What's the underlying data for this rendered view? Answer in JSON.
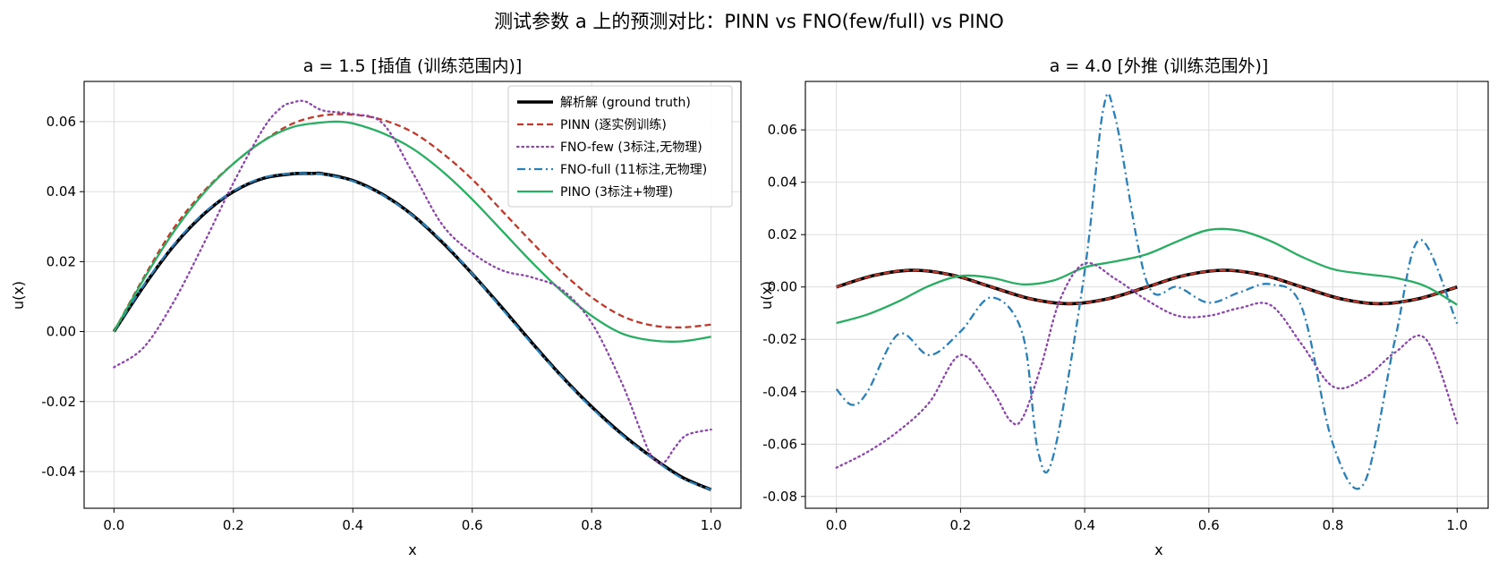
{
  "figure": {
    "title": "测试参数 a 上的预测对比：PINN vs FNO(few/full) vs PINO"
  },
  "legend": [
    {
      "key": "gt",
      "label": "解析解 (ground truth)"
    },
    {
      "key": "pinn",
      "label": "PINN (逐实例训练)"
    },
    {
      "key": "few",
      "label": "FNO-few (3标注,无物理)"
    },
    {
      "key": "full",
      "label": "FNO-full (11标注,无物理)"
    },
    {
      "key": "pino",
      "label": "PINO (3标注+物理)"
    }
  ],
  "colors": {
    "gt": "#000000",
    "pinn": "#c0392b",
    "few": "#8e44ad",
    "full": "#2980b9",
    "pino": "#27ae60"
  },
  "chart_data": [
    {
      "type": "line",
      "title": "a = 1.5  [插值 (训练范围内)]",
      "xlabel": "x",
      "ylabel": "u(x)",
      "xlim": [
        -0.05,
        1.05
      ],
      "ylim": [
        -0.0505,
        0.0715
      ],
      "xticks": [
        0.0,
        0.2,
        0.4,
        0.6,
        0.8,
        1.0
      ],
      "xtick_labels": [
        "0.0",
        "0.2",
        "0.4",
        "0.6",
        "0.8",
        "1.0"
      ],
      "yticks": [
        -0.04,
        -0.02,
        0.0,
        0.02,
        0.04,
        0.06
      ],
      "ytick_labels": [
        "-0.04",
        "-0.02",
        "0.00",
        "0.02",
        "0.04",
        "0.06"
      ],
      "grid": true,
      "legend_position": "top-right",
      "series": [
        {
          "key": "gt",
          "x": [
            0,
            0.05,
            0.1,
            0.15,
            0.2,
            0.25,
            0.3,
            0.333,
            0.35,
            0.4,
            0.45,
            0.5,
            0.55,
            0.6,
            0.65,
            0.7,
            0.75,
            0.8,
            0.85,
            0.9,
            0.95,
            1.0
          ],
          "y": [
            0,
            0.013,
            0.0245,
            0.0335,
            0.04,
            0.0438,
            0.0451,
            0.0452,
            0.0451,
            0.0432,
            0.0392,
            0.0333,
            0.0255,
            0.0165,
            0.0068,
            -0.0032,
            -0.0128,
            -0.0215,
            -0.0292,
            -0.0358,
            -0.0415,
            -0.0452
          ]
        },
        {
          "key": "full",
          "x": [
            0,
            0.05,
            0.1,
            0.15,
            0.2,
            0.25,
            0.3,
            0.333,
            0.35,
            0.4,
            0.45,
            0.5,
            0.55,
            0.6,
            0.65,
            0.7,
            0.75,
            0.8,
            0.85,
            0.9,
            0.95,
            1.0
          ],
          "y": [
            0,
            0.0133,
            0.0248,
            0.0338,
            0.0402,
            0.044,
            0.0452,
            0.0452,
            0.045,
            0.043,
            0.039,
            0.0332,
            0.0258,
            0.0165,
            0.0065,
            -0.0035,
            -0.013,
            -0.0218,
            -0.0295,
            -0.036,
            -0.0418,
            -0.0452
          ]
        },
        {
          "key": "pinn",
          "x": [
            0,
            0.05,
            0.1,
            0.15,
            0.2,
            0.25,
            0.3,
            0.35,
            0.4,
            0.45,
            0.5,
            0.55,
            0.6,
            0.65,
            0.7,
            0.75,
            0.8,
            0.85,
            0.9,
            0.95,
            1.0
          ],
          "y": [
            0,
            0.0155,
            0.0295,
            0.04,
            0.048,
            0.0545,
            0.0595,
            0.0618,
            0.062,
            0.0605,
            0.057,
            0.051,
            0.0435,
            0.0345,
            0.0255,
            0.017,
            0.0098,
            0.0045,
            0.0018,
            0.0012,
            0.002
          ]
        },
        {
          "key": "pino",
          "x": [
            0,
            0.05,
            0.1,
            0.15,
            0.2,
            0.25,
            0.3,
            0.35,
            0.375,
            0.4,
            0.45,
            0.5,
            0.55,
            0.6,
            0.65,
            0.7,
            0.75,
            0.8,
            0.85,
            0.9,
            0.95,
            1.0
          ],
          "y": [
            0,
            0.015,
            0.0285,
            0.0395,
            0.048,
            0.0545,
            0.0585,
            0.0598,
            0.06,
            0.0595,
            0.0567,
            0.0523,
            0.0458,
            0.0378,
            0.0288,
            0.0198,
            0.0115,
            0.0045,
            -0.0005,
            -0.0025,
            -0.0028,
            -0.0015
          ]
        },
        {
          "key": "few",
          "x": [
            0,
            0.05,
            0.1,
            0.15,
            0.2,
            0.25,
            0.28,
            0.3,
            0.32,
            0.35,
            0.4,
            0.45,
            0.5,
            0.55,
            0.6,
            0.65,
            0.7,
            0.75,
            0.8,
            0.85,
            0.88,
            0.9,
            0.92,
            0.94,
            0.96,
            1.0
          ],
          "y": [
            -0.0102,
            -0.0045,
            0.0085,
            0.025,
            0.0425,
            0.058,
            0.064,
            0.0655,
            0.0658,
            0.0632,
            0.0622,
            0.0595,
            0.0455,
            0.0305,
            0.0225,
            0.0175,
            0.0155,
            0.012,
            0.0025,
            -0.0145,
            -0.0275,
            -0.0355,
            -0.0375,
            -0.033,
            -0.0295,
            -0.028
          ]
        }
      ]
    },
    {
      "type": "line",
      "title": "a = 4.0  [外推 (训练范围外)]",
      "xlabel": "x",
      "ylabel": "u(x)",
      "xlim": [
        -0.05,
        1.05
      ],
      "ylim": [
        -0.0845,
        0.0785
      ],
      "xticks": [
        0.0,
        0.2,
        0.4,
        0.6,
        0.8,
        1.0
      ],
      "xtick_labels": [
        "0.0",
        "0.2",
        "0.4",
        "0.6",
        "0.8",
        "1.0"
      ],
      "yticks": [
        -0.08,
        -0.06,
        -0.04,
        -0.02,
        0.0,
        0.02,
        0.04,
        0.06
      ],
      "ytick_labels": [
        "-0.08",
        "-0.06",
        "-0.04",
        "-0.02",
        "0.00",
        "0.02",
        "0.04",
        "0.06"
      ],
      "grid": true,
      "legend_position": "none",
      "series": [
        {
          "key": "gt",
          "x": [
            0,
            0.0625,
            0.125,
            0.1875,
            0.25,
            0.3125,
            0.375,
            0.4375,
            0.5,
            0.5625,
            0.625,
            0.6875,
            0.75,
            0.8125,
            0.875,
            0.9375,
            1.0
          ],
          "y": [
            0,
            0.0045,
            0.0064,
            0.0045,
            0,
            -0.0045,
            -0.0064,
            -0.0045,
            0,
            0.0045,
            0.0064,
            0.0045,
            0,
            -0.0045,
            -0.0064,
            -0.0045,
            0
          ]
        },
        {
          "key": "pinn",
          "x": [
            0,
            0.0625,
            0.125,
            0.1875,
            0.25,
            0.3125,
            0.375,
            0.4375,
            0.5,
            0.5625,
            0.625,
            0.6875,
            0.75,
            0.8125,
            0.875,
            0.9375,
            1.0
          ],
          "y": [
            0,
            0.0045,
            0.0064,
            0.0045,
            0,
            -0.0045,
            -0.0064,
            -0.0045,
            0,
            0.0045,
            0.0064,
            0.0045,
            0,
            -0.0045,
            -0.0064,
            -0.0045,
            0
          ]
        },
        {
          "key": "pino",
          "x": [
            0,
            0.05,
            0.1,
            0.15,
            0.2,
            0.25,
            0.3,
            0.35,
            0.4,
            0.45,
            0.5,
            0.55,
            0.6,
            0.65,
            0.7,
            0.75,
            0.8,
            0.85,
            0.9,
            0.95,
            1.0
          ],
          "y": [
            -0.0138,
            -0.0105,
            -0.0055,
            0.0005,
            0.0042,
            0.0035,
            0.001,
            0.0025,
            0.0075,
            0.0098,
            0.0125,
            0.0175,
            0.0218,
            0.0215,
            0.0175,
            0.0115,
            0.0068,
            0.005,
            0.0035,
            0.0002,
            -0.0068
          ]
        },
        {
          "key": "few",
          "x": [
            0,
            0.05,
            0.1,
            0.15,
            0.2,
            0.25,
            0.28,
            0.3,
            0.33,
            0.36,
            0.4,
            0.45,
            0.5,
            0.55,
            0.6,
            0.65,
            0.7,
            0.75,
            0.8,
            0.85,
            0.9,
            0.95,
            1.0
          ],
          "y": [
            -0.069,
            -0.063,
            -0.055,
            -0.044,
            -0.026,
            -0.039,
            -0.051,
            -0.05,
            -0.03,
            -0.005,
            0.009,
            0.003,
            -0.005,
            -0.011,
            -0.011,
            -0.008,
            -0.007,
            -0.022,
            -0.038,
            -0.035,
            -0.025,
            -0.02,
            -0.052
          ]
        },
        {
          "key": "full",
          "x": [
            0,
            0.025,
            0.05,
            0.1,
            0.15,
            0.2,
            0.25,
            0.3,
            0.325,
            0.35,
            0.4,
            0.43,
            0.45,
            0.5,
            0.55,
            0.6,
            0.65,
            0.7,
            0.75,
            0.8,
            0.85,
            0.9,
            0.94,
            1.0
          ],
          "y": [
            -0.039,
            -0.045,
            -0.04,
            -0.018,
            -0.026,
            -0.017,
            -0.004,
            -0.018,
            -0.063,
            -0.064,
            0.006,
            0.068,
            0.064,
            0.002,
            0.0,
            -0.006,
            -0.002,
            0.001,
            -0.008,
            -0.06,
            -0.075,
            -0.02,
            0.018,
            -0.014
          ]
        }
      ]
    }
  ]
}
